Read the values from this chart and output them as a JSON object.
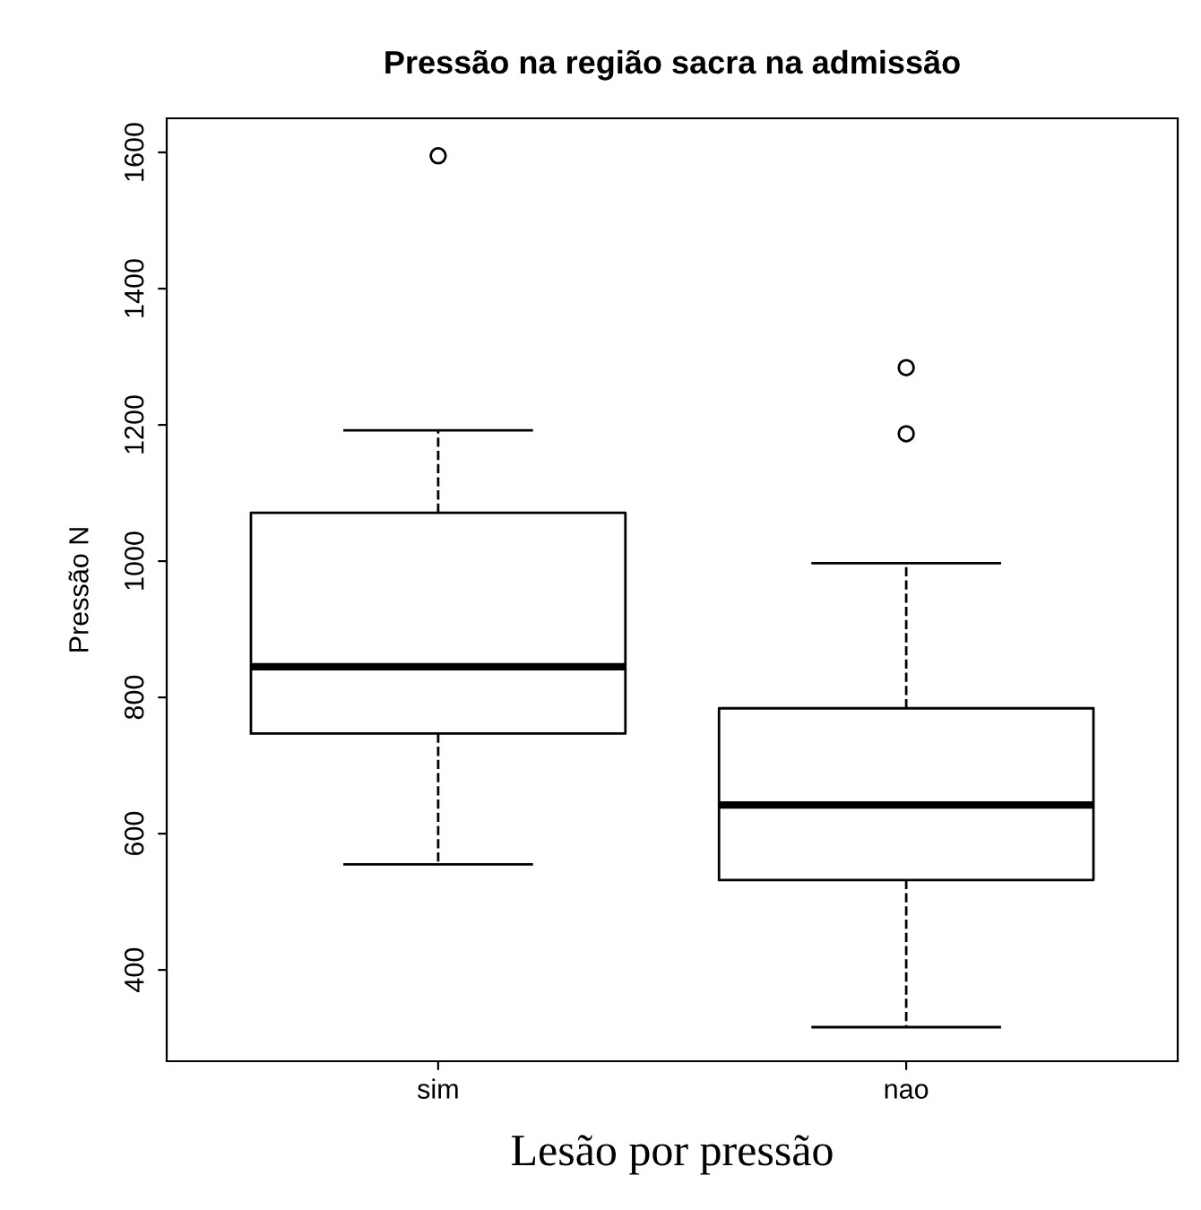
{
  "chart_data": {
    "type": "box",
    "title": "Pressão na região sacra na admissão",
    "xlabel": "Lesão por pressão",
    "ylabel": "Pressão N",
    "categories": [
      "sim",
      "nao"
    ],
    "boxes": [
      {
        "low": 555,
        "q1": 747,
        "median": 845,
        "q3": 1071,
        "high": 1192,
        "outliers": [
          1595
        ]
      },
      {
        "low": 316,
        "q1": 532,
        "median": 642,
        "q3": 784,
        "high": 997,
        "outliers": [
          1187,
          1284
        ]
      }
    ],
    "ylim": [
      266,
      1650
    ],
    "yticks": [
      400,
      600,
      800,
      1000,
      1200,
      1400,
      1600
    ],
    "grid": false
  }
}
